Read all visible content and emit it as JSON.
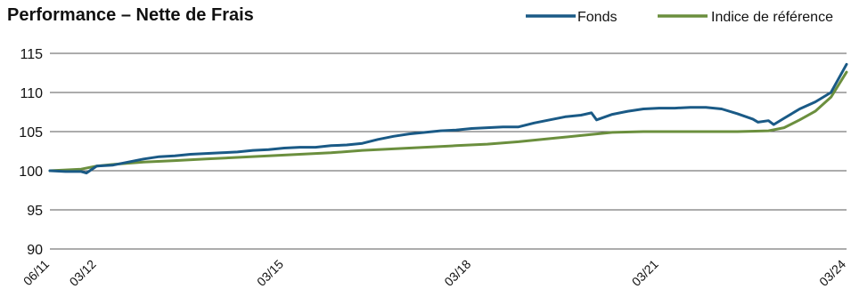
{
  "chart_data": {
    "type": "line",
    "title": "Performance – Nette de Frais",
    "xlabel": "",
    "ylabel": "",
    "ylim": [
      90,
      115
    ],
    "yticks": [
      90,
      95,
      100,
      105,
      110,
      115
    ],
    "xrange": [
      "2011-06",
      "2024-03"
    ],
    "xticks": [
      {
        "label": "06/11",
        "date": "2011-06"
      },
      {
        "label": "03/12",
        "date": "2012-03"
      },
      {
        "label": "03/15",
        "date": "2015-03"
      },
      {
        "label": "03/18",
        "date": "2018-03"
      },
      {
        "label": "03/21",
        "date": "2021-03"
      },
      {
        "label": "03/24",
        "date": "2024-03"
      }
    ],
    "grid": "horizontal",
    "legend_position": "top-right",
    "series": [
      {
        "name": "Fonds",
        "color": "#1a5a86",
        "points": [
          [
            "2011-06",
            100.0
          ],
          [
            "2011-09",
            99.9
          ],
          [
            "2011-12",
            99.9
          ],
          [
            "2012-01",
            99.7
          ],
          [
            "2012-03",
            100.6
          ],
          [
            "2012-06",
            100.7
          ],
          [
            "2012-09",
            101.1
          ],
          [
            "2012-12",
            101.5
          ],
          [
            "2013-03",
            101.8
          ],
          [
            "2013-06",
            101.9
          ],
          [
            "2013-09",
            102.1
          ],
          [
            "2013-12",
            102.2
          ],
          [
            "2014-03",
            102.3
          ],
          [
            "2014-06",
            102.4
          ],
          [
            "2014-09",
            102.6
          ],
          [
            "2014-12",
            102.7
          ],
          [
            "2015-03",
            102.9
          ],
          [
            "2015-06",
            103.0
          ],
          [
            "2015-09",
            103.0
          ],
          [
            "2015-12",
            103.2
          ],
          [
            "2016-03",
            103.3
          ],
          [
            "2016-06",
            103.5
          ],
          [
            "2016-09",
            104.0
          ],
          [
            "2016-12",
            104.4
          ],
          [
            "2017-03",
            104.7
          ],
          [
            "2017-06",
            104.9
          ],
          [
            "2017-09",
            105.1
          ],
          [
            "2017-12",
            105.2
          ],
          [
            "2018-03",
            105.4
          ],
          [
            "2018-06",
            105.5
          ],
          [
            "2018-09",
            105.6
          ],
          [
            "2018-12",
            105.6
          ],
          [
            "2019-03",
            106.1
          ],
          [
            "2019-06",
            106.5
          ],
          [
            "2019-09",
            106.9
          ],
          [
            "2019-12",
            107.1
          ],
          [
            "2020-02",
            107.4
          ],
          [
            "2020-03",
            106.5
          ],
          [
            "2020-06",
            107.2
          ],
          [
            "2020-09",
            107.6
          ],
          [
            "2020-12",
            107.9
          ],
          [
            "2021-03",
            108.0
          ],
          [
            "2021-06",
            108.0
          ],
          [
            "2021-09",
            108.1
          ],
          [
            "2021-12",
            108.1
          ],
          [
            "2022-03",
            107.9
          ],
          [
            "2022-06",
            107.3
          ],
          [
            "2022-09",
            106.6
          ],
          [
            "2022-10",
            106.2
          ],
          [
            "2022-12",
            106.4
          ],
          [
            "2023-01",
            105.9
          ],
          [
            "2023-03",
            106.7
          ],
          [
            "2023-06",
            107.9
          ],
          [
            "2023-09",
            108.8
          ],
          [
            "2023-12",
            110.0
          ],
          [
            "2024-03",
            113.6
          ]
        ]
      },
      {
        "name": "Indice de référence",
        "color": "#6b8f3e",
        "points": [
          [
            "2011-06",
            100.0
          ],
          [
            "2011-12",
            100.2
          ],
          [
            "2012-03",
            100.6
          ],
          [
            "2012-06",
            100.8
          ],
          [
            "2012-12",
            101.1
          ],
          [
            "2013-06",
            101.3
          ],
          [
            "2013-12",
            101.5
          ],
          [
            "2014-06",
            101.7
          ],
          [
            "2014-12",
            101.9
          ],
          [
            "2015-06",
            102.1
          ],
          [
            "2015-12",
            102.3
          ],
          [
            "2016-06",
            102.6
          ],
          [
            "2016-12",
            102.8
          ],
          [
            "2017-06",
            103.0
          ],
          [
            "2017-12",
            103.2
          ],
          [
            "2018-06",
            103.4
          ],
          [
            "2018-12",
            103.7
          ],
          [
            "2019-06",
            104.1
          ],
          [
            "2019-12",
            104.5
          ],
          [
            "2020-06",
            104.9
          ],
          [
            "2020-12",
            105.0
          ],
          [
            "2021-06",
            105.0
          ],
          [
            "2021-12",
            105.0
          ],
          [
            "2022-06",
            105.0
          ],
          [
            "2022-12",
            105.1
          ],
          [
            "2023-03",
            105.5
          ],
          [
            "2023-06",
            106.5
          ],
          [
            "2023-09",
            107.6
          ],
          [
            "2023-12",
            109.4
          ],
          [
            "2024-03",
            112.6
          ]
        ]
      }
    ]
  }
}
